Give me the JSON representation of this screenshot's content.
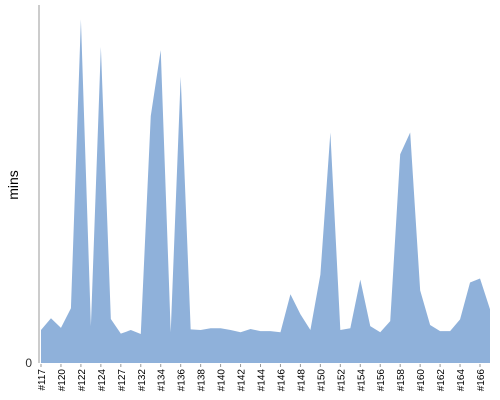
{
  "chart_data": {
    "type": "area",
    "title": "",
    "ylabel": "mins",
    "xlabel": "",
    "area_color": "#8fb1da",
    "axis_color": "#999999",
    "y_ticks": [
      0
    ],
    "ylim": [
      0,
      100
    ],
    "x_tick_labels": [
      "#117",
      "#120",
      "#122",
      "#124",
      "#127",
      "#132",
      "#134",
      "#136",
      "#138",
      "#140",
      "#142",
      "#144",
      "#146",
      "#148",
      "#150",
      "#152",
      "#154",
      "#156",
      "#158",
      "#160",
      "#162",
      "#164",
      "#166"
    ],
    "values": [
      9.2,
      12.5,
      9.8,
      15.3,
      96.0,
      10.3,
      88.3,
      12.3,
      8.2,
      9.2,
      8.1,
      69.0,
      87.4,
      8.6,
      80.0,
      9.4,
      9.2,
      9.7,
      9.7,
      9.2,
      8.6,
      9.5,
      8.9,
      8.9,
      8.6,
      19.2,
      13.6,
      9.2,
      24.7,
      64.4,
      9.2,
      9.7,
      23.3,
      10.3,
      8.6,
      11.7,
      58.3,
      64.4,
      20.3,
      10.6,
      8.9,
      8.9,
      12.2,
      22.5,
      23.6,
      15.0
    ]
  }
}
